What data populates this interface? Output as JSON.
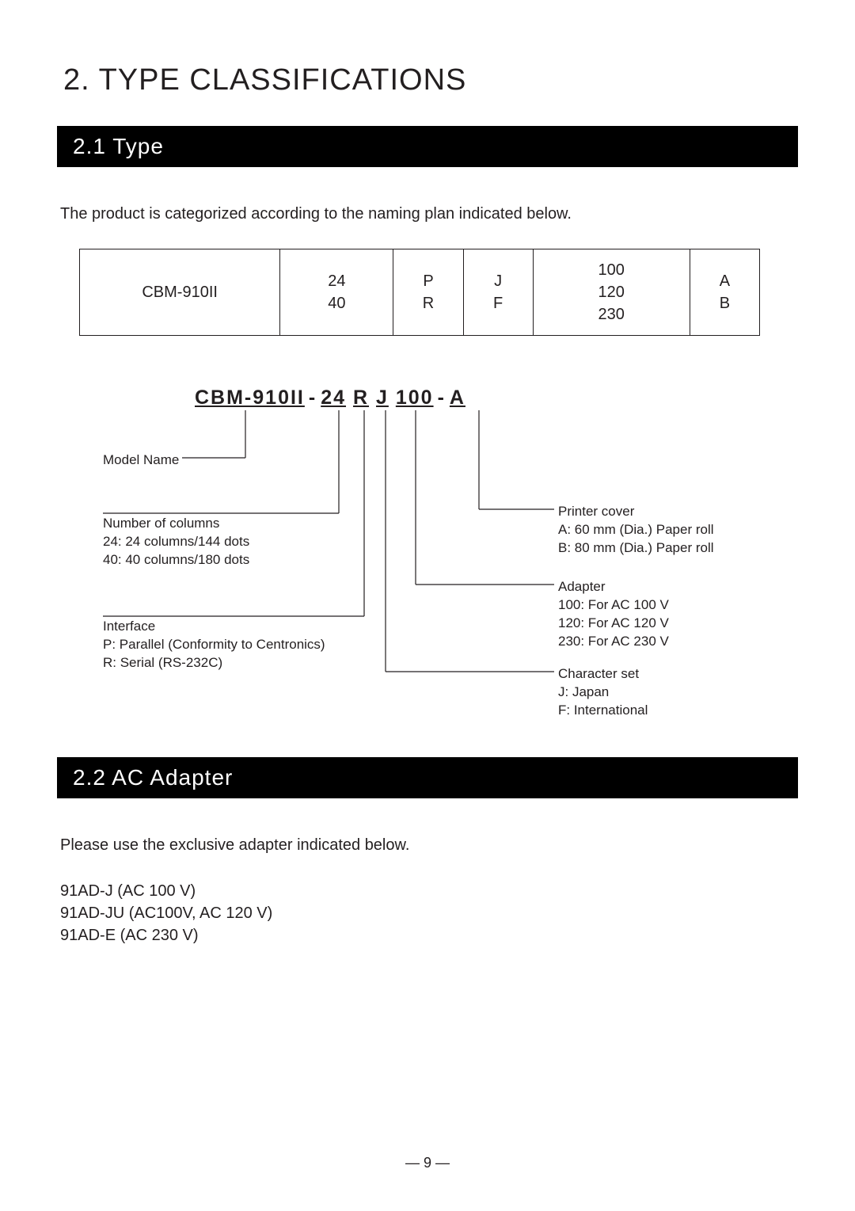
{
  "chapter_title": "2.  TYPE CLASSIFICATIONS",
  "section_2_1": {
    "title": "2.1  Type",
    "intro": "The product is categorized according to the naming plan indicated below.",
    "table": {
      "c1": "CBM-910II",
      "c2": "24\n40",
      "c3": "P\nR",
      "c4": "J\nF",
      "c5": "100\n120\n230",
      "c6": "A\nB"
    },
    "model_code": {
      "p1": "CBM-910II",
      "p2": "24",
      "p3": "R",
      "p4": "J",
      "p5": "100",
      "p6": "A"
    },
    "labels": {
      "model_name": "Model Name",
      "columns_title": "Number of columns",
      "columns_l1": "24: 24 columns/144 dots",
      "columns_l2": "40: 40 columns/180 dots",
      "interface_title": "Interface",
      "interface_l1": "P: Parallel (Conformity to Centronics)",
      "interface_l2": "R: Serial (RS-232C)",
      "cover_title": "Printer cover",
      "cover_l1": "A: 60 mm (Dia.) Paper roll",
      "cover_l2": "B: 80 mm (Dia.) Paper roll",
      "adapter_title": "Adapter",
      "adapter_l1": "100: For AC 100 V",
      "adapter_l2": "120: For AC 120 V",
      "adapter_l3": "230: For AC 230 V",
      "charset_title": "Character set",
      "charset_l1": "J: Japan",
      "charset_l2": "F: International"
    }
  },
  "section_2_2": {
    "title": "2.2  AC Adapter",
    "intro": "Please use the exclusive adapter indicated below.",
    "items": {
      "i1": "91AD-J (AC 100 V)",
      "i2": "91AD-JU (AC100V, AC 120 V)",
      "i3": "91AD-E (AC 230 V)"
    }
  },
  "page_number": "— 9 —",
  "colors": {
    "text": "#231f20",
    "black_bar": "#000000",
    "white": "#ffffff"
  }
}
